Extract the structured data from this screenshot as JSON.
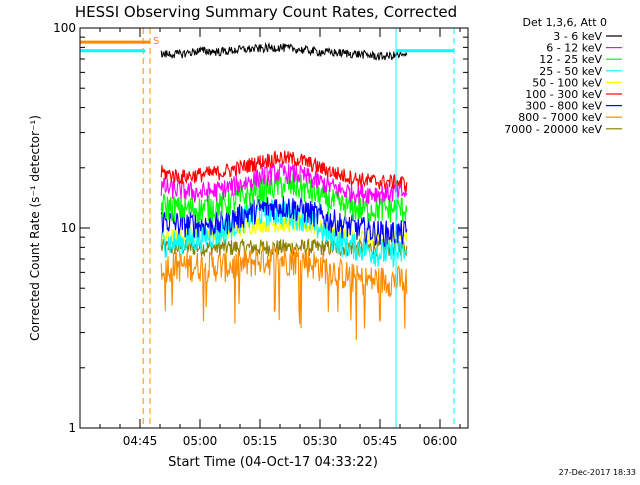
{
  "chart_data": {
    "type": "line",
    "title": "HESSI Observing Summary Count Rates, Corrected",
    "xlabel": "Start Time (04-Oct-17 04:33:22)",
    "ylabel": "Corrected Count Rate (s⁻¹ detector⁻¹)",
    "ylog": true,
    "ylim": [
      1,
      100
    ],
    "xlim_min": [
      0,
      97
    ],
    "y_ticks": [
      {
        "value": 1,
        "label": "1"
      },
      {
        "value": 10,
        "label": "10"
      },
      {
        "value": 100,
        "label": "100"
      }
    ],
    "x_ticks": [
      {
        "min": 15,
        "label": "04:45"
      },
      {
        "min": 30,
        "label": "05:00"
      },
      {
        "min": 45,
        "label": "05:15"
      },
      {
        "min": 60,
        "label": "05:30"
      },
      {
        "min": 75,
        "label": "05:45"
      },
      {
        "min": 90,
        "label": "06:00"
      }
    ],
    "legend_header": "Det 1,3,6, Att 0",
    "series": [
      {
        "name": "3 - 6 keV",
        "color": "#000000",
        "t": [
          20.3,
          25,
          30,
          35,
          40,
          45,
          50,
          55,
          60,
          65,
          70,
          75,
          80,
          81.7
        ],
        "values": [
          74,
          74,
          77,
          76,
          78,
          79,
          80,
          78,
          76,
          75,
          74,
          72,
          73,
          72
        ]
      },
      {
        "name": "6 - 12 keV",
        "color": "#ff00ff",
        "t": [
          20.3,
          25,
          30,
          35,
          40,
          45,
          50,
          55,
          60,
          65,
          70,
          75,
          80,
          81.7
        ],
        "values": [
          16,
          15.5,
          15,
          15.5,
          16.5,
          18,
          19,
          18.5,
          17,
          15.5,
          15,
          15,
          15,
          15
        ]
      },
      {
        "name": "12 - 25 keV",
        "color": "#00ff00",
        "t": [
          20.3,
          25,
          30,
          35,
          40,
          45,
          50,
          55,
          60,
          65,
          70,
          75,
          80,
          81.7
        ],
        "values": [
          13,
          12.5,
          12.5,
          13,
          14,
          15.5,
          16.5,
          16,
          14.5,
          13,
          12.5,
          12.5,
          12.5,
          12.5
        ]
      },
      {
        "name": "25 - 50 keV",
        "color": "#00ffff",
        "t": [
          20.3,
          25,
          30,
          35,
          40,
          45,
          50,
          55,
          60,
          65,
          70,
          75,
          80,
          81.7
        ],
        "values": [
          8.5,
          8.5,
          9,
          9.5,
          11,
          12,
          12,
          11.5,
          10,
          8.5,
          8,
          7.5,
          7.5,
          7.5
        ]
      },
      {
        "name": "50 - 100 keV",
        "color": "#ffff00",
        "t": [
          20.3,
          25,
          30,
          35,
          40,
          45,
          50,
          55,
          60,
          65,
          70,
          75,
          80,
          81.7
        ],
        "values": [
          9,
          9,
          9.5,
          9.5,
          10,
          10.5,
          10.5,
          10.5,
          10,
          9.5,
          9,
          9,
          9,
          9
        ]
      },
      {
        "name": "100 - 300 keV",
        "color": "#ff0000",
        "t": [
          20.3,
          25,
          30,
          35,
          40,
          45,
          50,
          55,
          60,
          65,
          70,
          75,
          80,
          81.7
        ],
        "values": [
          19,
          18,
          18.5,
          19,
          20,
          21.5,
          22.5,
          22,
          20,
          18.5,
          17.5,
          17,
          17,
          16.5
        ]
      },
      {
        "name": "300 - 800 keV",
        "color": "#0000ff",
        "t": [
          20.3,
          25,
          30,
          35,
          40,
          45,
          50,
          55,
          60,
          65,
          70,
          75,
          80,
          81.7
        ],
        "values": [
          11,
          10.5,
          10.5,
          10.5,
          11.5,
          12.5,
          13,
          12.5,
          11.5,
          10.5,
          10,
          9.5,
          9.5,
          9.5
        ]
      },
      {
        "name": "800 - 7000 keV",
        "color": "#ff8c00",
        "t": [
          20.3,
          25,
          30,
          35,
          40,
          45,
          50,
          55,
          60,
          65,
          70,
          75,
          80,
          81.7
        ],
        "values": [
          6.5,
          6.5,
          6.5,
          6.5,
          6.5,
          7,
          7,
          7,
          6.5,
          6,
          5.5,
          5.5,
          5.5,
          5.5
        ]
      },
      {
        "name": "7000 - 20000 keV",
        "color": "#8b8000",
        "t": [
          20.3,
          25,
          30,
          35,
          40,
          45,
          50,
          55,
          60,
          65,
          70,
          75,
          80,
          81.7
        ],
        "values": [
          8,
          8,
          8,
          8,
          8,
          8,
          8,
          8,
          8,
          8,
          8,
          8,
          8,
          8
        ]
      }
    ],
    "annotations": {
      "saa_label": "S",
      "orange_bar": {
        "t_start": 0,
        "t_end": 17.5,
        "value": 85
      },
      "cyan_bar": {
        "t_start": 0,
        "t_end": 16.3,
        "value": 77
      },
      "cyan_bar_right": {
        "t_start": 79,
        "t_end": 93.5,
        "value": 77
      },
      "cyan_lines_solid_min": [
        0,
        79
      ],
      "cyan_lines_dashed_min": [
        93.5
      ],
      "orange_lines_dashed_min": [
        15.8,
        17.5
      ]
    }
  },
  "footer": {
    "timestamp": "27-Dec-2017 18:33"
  }
}
